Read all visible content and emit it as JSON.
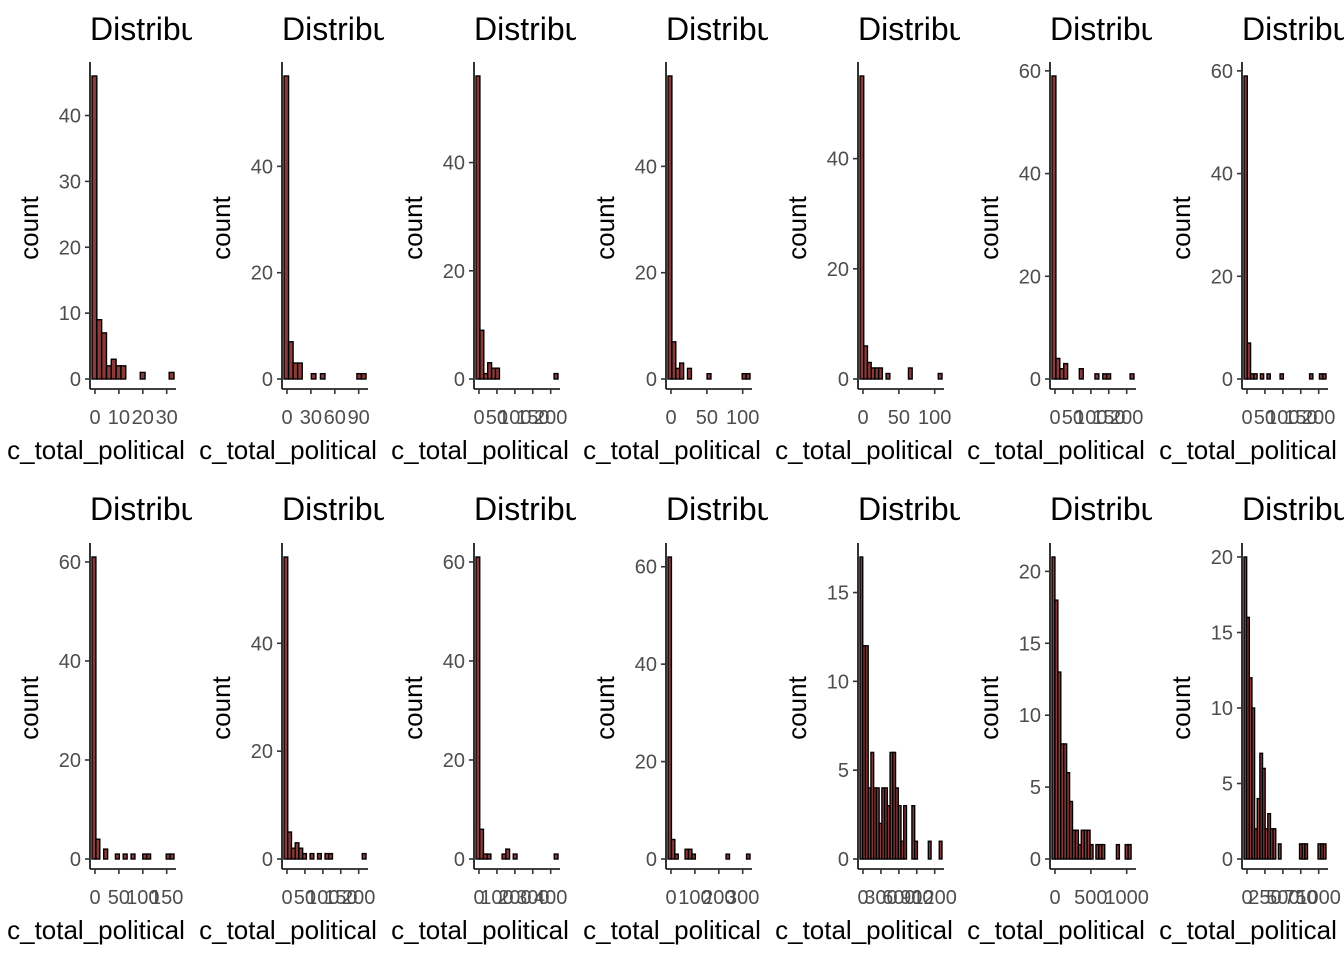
{
  "style": {
    "bar_fill": "#8b3a3a",
    "bar_outline": "#000000",
    "background": "#ffffff"
  },
  "chart_data": [
    {
      "type": "bar",
      "title": "Distribu",
      "xlabel": "c_total_political",
      "ylabel": "count",
      "yticks": [
        0,
        10,
        20,
        30,
        40
      ],
      "ymax": 46,
      "xticks": [
        "0",
        "10",
        "20",
        "30"
      ],
      "values": [
        46,
        9,
        7,
        2,
        3,
        2,
        2,
        0,
        0,
        0,
        1,
        0,
        0,
        0,
        0,
        0,
        1
      ]
    },
    {
      "type": "bar",
      "title": "Distribu",
      "xlabel": "c_total_political",
      "ylabel": "count",
      "yticks": [
        0,
        20,
        40
      ],
      "ymax": 57,
      "xticks": [
        "0",
        "30",
        "60",
        "90"
      ],
      "values": [
        57,
        7,
        3,
        3,
        0,
        0,
        1,
        0,
        1,
        0,
        0,
        0,
        0,
        0,
        0,
        0,
        1,
        1
      ]
    },
    {
      "type": "bar",
      "title": "Distribu",
      "xlabel": "c_total_political",
      "ylabel": "count",
      "yticks": [
        0,
        20,
        40
      ],
      "ymax": 56,
      "xticks": [
        "0",
        "50",
        "100",
        "150",
        "200"
      ],
      "values": [
        56,
        9,
        1,
        3,
        2,
        2,
        0,
        0,
        0,
        0,
        0,
        0,
        0,
        0,
        0,
        0,
        0,
        0,
        0,
        0,
        1
      ]
    },
    {
      "type": "bar",
      "title": "Distribu",
      "xlabel": "c_total_political",
      "ylabel": "count",
      "yticks": [
        0,
        20,
        40
      ],
      "ymax": 57,
      "xticks": [
        "0",
        "50",
        "100"
      ],
      "values": [
        57,
        7,
        2,
        3,
        0,
        2,
        0,
        0,
        0,
        0,
        1,
        0,
        0,
        0,
        0,
        0,
        0,
        0,
        0,
        1,
        1
      ]
    },
    {
      "type": "bar",
      "title": "Distribu",
      "xlabel": "c_total_political",
      "ylabel": "count",
      "yticks": [
        0,
        20,
        40
      ],
      "ymax": 55,
      "xticks": [
        "0",
        "50",
        "100"
      ],
      "values": [
        55,
        6,
        3,
        2,
        2,
        2,
        0,
        1,
        0,
        0,
        0,
        0,
        0,
        2,
        0,
        0,
        0,
        0,
        0,
        0,
        0,
        1
      ]
    },
    {
      "type": "bar",
      "title": "Distribu",
      "xlabel": "c_total_political",
      "ylabel": "count",
      "yticks": [
        0,
        20,
        40,
        60
      ],
      "ymax": 59,
      "xticks": [
        "0",
        "50",
        "100",
        "150",
        "200"
      ],
      "values": [
        59,
        4,
        2,
        3,
        0,
        0,
        0,
        2,
        0,
        0,
        0,
        1,
        0,
        1,
        1,
        0,
        0,
        0,
        0,
        0,
        1
      ]
    },
    {
      "type": "bar",
      "title": "Distribu",
      "xlabel": "c_total_political",
      "ylabel": "count",
      "yticks": [
        0,
        20,
        40,
        60
      ],
      "ymax": 59,
      "xticks": [
        "0",
        "50",
        "100",
        "150",
        "200"
      ],
      "values": [
        59,
        7,
        1,
        1,
        0,
        1,
        0,
        1,
        0,
        0,
        0,
        1,
        0,
        0,
        0,
        0,
        0,
        0,
        0,
        0,
        1,
        0,
        0,
        1,
        1
      ]
    },
    {
      "type": "bar",
      "title": "Distribu",
      "xlabel": "c_total_political",
      "ylabel": "count",
      "yticks": [
        0,
        20,
        40,
        60
      ],
      "ymax": 61,
      "xticks": [
        "0",
        "50",
        "100",
        "150"
      ],
      "values": [
        61,
        4,
        0,
        2,
        0,
        0,
        1,
        0,
        1,
        0,
        1,
        0,
        0,
        1,
        1,
        0,
        0,
        0,
        0,
        1,
        1
      ]
    },
    {
      "type": "bar",
      "title": "Distribu",
      "xlabel": "c_total_political",
      "ylabel": "count",
      "yticks": [
        0,
        20,
        40
      ],
      "ymax": 56,
      "xticks": [
        "0",
        "50",
        "100",
        "150",
        "200"
      ],
      "values": [
        56,
        5,
        2,
        3,
        2,
        1,
        0,
        1,
        0,
        1,
        0,
        1,
        1,
        0,
        0,
        0,
        0,
        0,
        0,
        0,
        0,
        1
      ]
    },
    {
      "type": "bar",
      "title": "Distribu",
      "xlabel": "c_total_political",
      "ylabel": "count",
      "yticks": [
        0,
        20,
        40,
        60
      ],
      "ymax": 61,
      "xticks": [
        "0",
        "100",
        "200",
        "300",
        "400"
      ],
      "values": [
        61,
        6,
        1,
        1,
        0,
        0,
        0,
        1,
        2,
        0,
        1,
        0,
        0,
        0,
        0,
        0,
        0,
        0,
        0,
        0,
        0,
        1
      ]
    },
    {
      "type": "bar",
      "title": "Distribu",
      "xlabel": "c_total_political",
      "ylabel": "count",
      "yticks": [
        0,
        20,
        40,
        60
      ],
      "ymax": 62,
      "xticks": [
        "0",
        "100",
        "200",
        "300"
      ],
      "values": [
        62,
        4,
        1,
        0,
        0,
        2,
        2,
        1,
        0,
        0,
        0,
        0,
        0,
        0,
        0,
        0,
        0,
        1,
        0,
        0,
        0,
        0,
        0,
        1
      ]
    },
    {
      "type": "bar",
      "title": "Distribu",
      "xlabel": "c_total_political",
      "ylabel": "count",
      "yticks": [
        0,
        5,
        10,
        15
      ],
      "ymax": 17,
      "xticks": [
        "0",
        "300",
        "600",
        "900",
        "1200"
      ],
      "values": [
        17,
        12,
        12,
        4,
        6,
        4,
        4,
        2,
        4,
        4,
        3,
        6,
        6,
        4,
        3,
        1,
        3,
        0,
        0,
        3,
        1,
        0,
        0,
        0,
        0,
        1,
        0,
        0,
        0,
        1
      ]
    },
    {
      "type": "bar",
      "title": "Distribu",
      "xlabel": "c_total_political",
      "ylabel": "count",
      "yticks": [
        0,
        5,
        10,
        15,
        20
      ],
      "ymax": 21,
      "xticks": [
        "0",
        "500",
        "1000"
      ],
      "values": [
        21,
        18,
        13,
        8,
        8,
        6,
        4,
        2,
        2,
        1,
        2,
        2,
        2,
        1,
        0,
        1,
        1,
        1,
        0,
        0,
        0,
        0,
        1,
        0,
        0,
        1,
        1,
        0
      ]
    },
    {
      "type": "bar",
      "title": "Distribu",
      "xlabel": "c_total_political",
      "ylabel": "count",
      "yticks": [
        0,
        5,
        10,
        15,
        20
      ],
      "ymax": 20,
      "xticks": [
        "0",
        "250",
        "500",
        "750",
        "1000"
      ],
      "values": [
        20,
        16,
        12,
        10,
        2,
        4,
        7,
        6,
        2,
        3,
        2,
        2,
        0,
        1,
        0,
        0,
        0,
        0,
        0,
        0,
        0,
        1,
        1,
        1,
        0,
        0,
        0,
        0,
        1,
        1,
        1
      ]
    }
  ]
}
